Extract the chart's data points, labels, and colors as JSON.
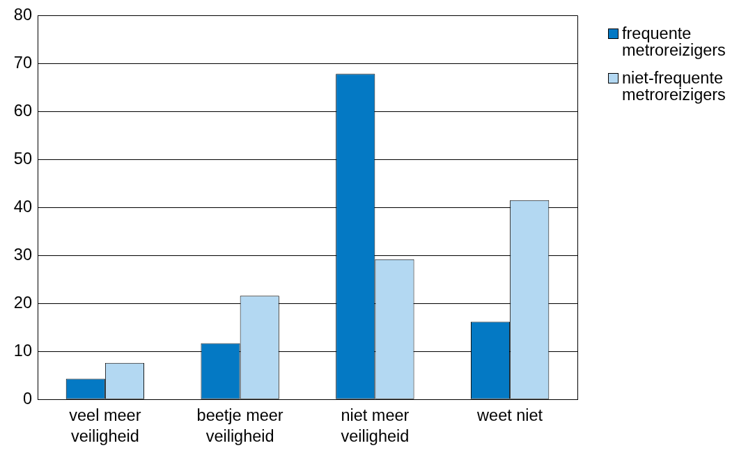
{
  "chart_data": {
    "type": "bar",
    "categories": [
      "veel meer veiligheid",
      "beetje meer veiligheid",
      "niet meer veiligheid",
      "weet niet"
    ],
    "series": [
      {
        "name": "frequente metroreizigers",
        "color": "#0479c4",
        "values": [
          4.3,
          11.7,
          67.8,
          16.2
        ]
      },
      {
        "name": "niet-frequente metroreizigers",
        "color": "#b3d8f2",
        "values": [
          7.6,
          21.6,
          29.2,
          41.5
        ]
      }
    ],
    "ylim": [
      0,
      80
    ],
    "yticks": [
      0,
      10,
      20,
      30,
      40,
      50,
      60,
      70,
      80
    ],
    "grid": "y",
    "legend": "top right"
  }
}
